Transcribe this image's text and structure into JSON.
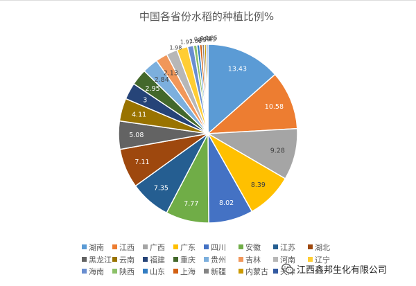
{
  "chart_data": {
    "type": "pie",
    "title": "中国各省份水稻的种植比例%",
    "legend_position": "bottom",
    "slices": [
      {
        "label": "湖南",
        "value": 13.43,
        "color": "#5b9bd5"
      },
      {
        "label": "江西",
        "value": 10.58,
        "color": "#ed7d31"
      },
      {
        "label": "广西",
        "value": 9.28,
        "color": "#a5a5a5"
      },
      {
        "label": "广东",
        "value": 8.39,
        "color": "#ffc000"
      },
      {
        "label": "四川",
        "value": 8.02,
        "color": "#4472c4"
      },
      {
        "label": "安徽",
        "value": 7.77,
        "color": "#70ad47"
      },
      {
        "label": "江苏",
        "value": 7.35,
        "color": "#255e91"
      },
      {
        "label": "湖北",
        "value": 7.11,
        "color": "#9e480e"
      },
      {
        "label": "黑龙江",
        "value": 5.08,
        "color": "#636363"
      },
      {
        "label": "云南",
        "value": 4.11,
        "color": "#997300"
      },
      {
        "label": "福建",
        "value": 3.0,
        "color": "#264478"
      },
      {
        "label": "重庆",
        "value": 2.95,
        "color": "#43682b"
      },
      {
        "label": "贵州",
        "value": 2.84,
        "color": "#7cafdd"
      },
      {
        "label": "吉林",
        "value": 2.13,
        "color": "#f1975a"
      },
      {
        "label": "河南",
        "value": 1.98,
        "color": "#b7b7b7"
      },
      {
        "label": "辽宁",
        "value": 1.97,
        "color": "#ffcd33"
      },
      {
        "label": "海南",
        "value": 1.06,
        "color": "#698ed0"
      },
      {
        "label": "陕西",
        "value": 0.6,
        "color": "#8cc168"
      },
      {
        "label": "山东",
        "value": 0.5,
        "color": "#327dc2"
      },
      {
        "label": "上海",
        "value": 0.45,
        "color": "#d26012"
      },
      {
        "label": "新疆",
        "value": 0.4,
        "color": "#848484"
      },
      {
        "label": "内蒙古",
        "value": 0.35,
        "color": "#cc9a00"
      },
      {
        "label": "天津",
        "value": 0.3,
        "color": "#335aa1"
      }
    ],
    "data_labels": [
      "13.43",
      "10.58",
      "9.28",
      "8.39",
      "8.02",
      "7.77",
      "7.35",
      "7.11",
      "5.08",
      "4.11",
      "3",
      "2.95",
      "2.84",
      "2.13",
      "1.98",
      "1.97",
      "1.06",
      "0.6",
      "0.5",
      "0.45",
      "0.4",
      "0.35",
      "0.3"
    ]
  },
  "watermark": {
    "text": "江西鑫邦生化有限公司",
    "icon": "wechat-icon"
  }
}
